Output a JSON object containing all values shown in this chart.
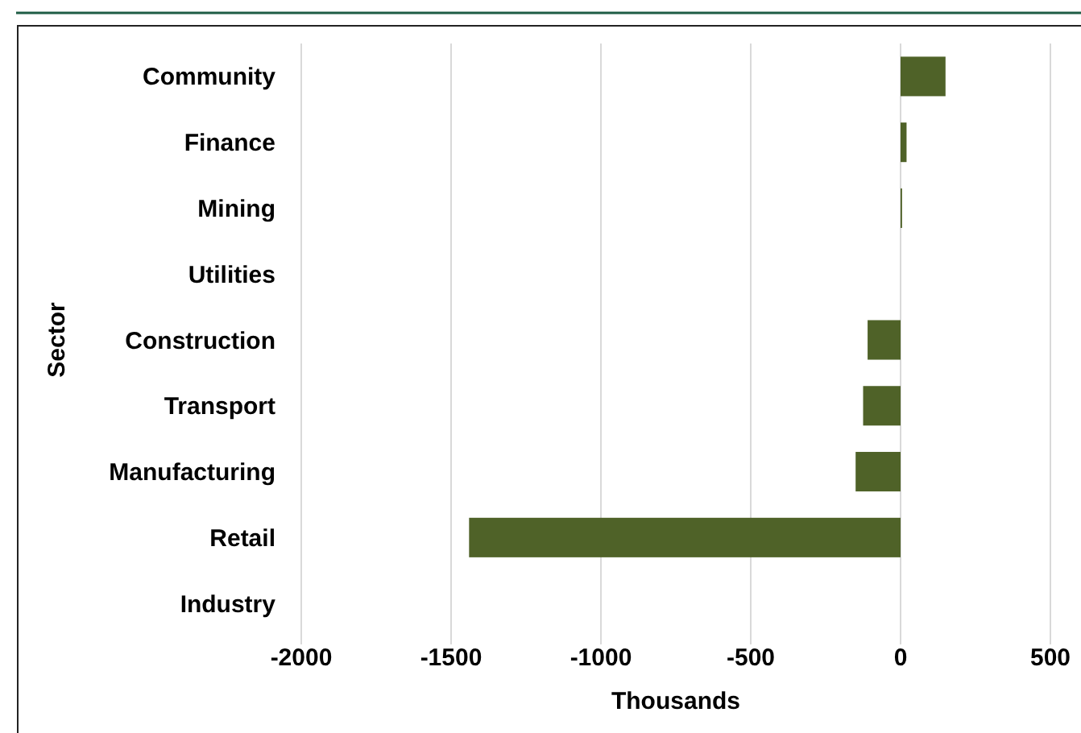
{
  "chart_data": {
    "type": "bar",
    "orientation": "horizontal",
    "categories": [
      "Community",
      "Finance",
      "Mining",
      "Utilities",
      "Construction",
      "Transport",
      "Manufacturing",
      "Retail",
      "Industry"
    ],
    "values": [
      150,
      20,
      5,
      0,
      -110,
      -125,
      -150,
      -1440,
      0
    ],
    "color": "#4f6228",
    "xlim": [
      -2000,
      500
    ],
    "xticks": [
      -2000,
      -1500,
      -1000,
      -500,
      0,
      500
    ],
    "xlabel": "Thousands",
    "ylabel": "Sector",
    "grid": "x"
  }
}
